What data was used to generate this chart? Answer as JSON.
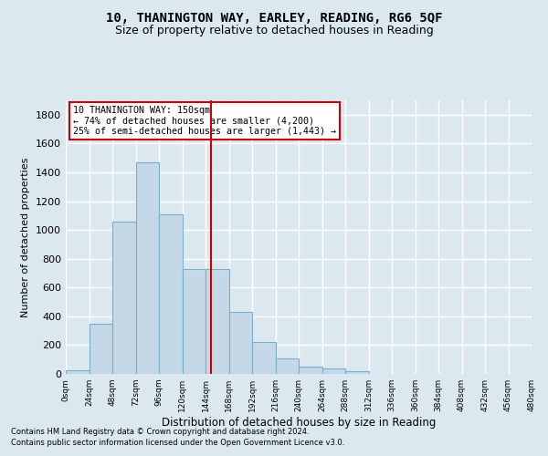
{
  "title": "10, THANINGTON WAY, EARLEY, READING, RG6 5QF",
  "subtitle": "Size of property relative to detached houses in Reading",
  "xlabel": "Distribution of detached houses by size in Reading",
  "ylabel": "Number of detached properties",
  "footnote1": "Contains HM Land Registry data © Crown copyright and database right 2024.",
  "footnote2": "Contains public sector information licensed under the Open Government Licence v3.0.",
  "annotation_line1": "10 THANINGTON WAY: 150sqm",
  "annotation_line2": "← 74% of detached houses are smaller (4,200)",
  "annotation_line3": "25% of semi-detached houses are larger (1,443) →",
  "property_size": 150,
  "bin_edges": [
    0,
    24,
    48,
    72,
    96,
    120,
    144,
    168,
    192,
    216,
    240,
    264,
    288,
    312,
    336,
    360,
    384,
    408,
    432,
    456,
    480
  ],
  "bar_values": [
    25,
    350,
    1060,
    1470,
    1110,
    730,
    730,
    430,
    220,
    105,
    50,
    38,
    20,
    0,
    0,
    0,
    0,
    0,
    0,
    0
  ],
  "bar_color": "#c5d8e8",
  "bar_edge_color": "#7aafc9",
  "vline_color": "#cc0000",
  "vline_x": 150,
  "annotation_box_color": "#ffffff",
  "annotation_box_edge_color": "#cc0000",
  "ylim": [
    0,
    1900
  ],
  "yticks": [
    0,
    200,
    400,
    600,
    800,
    1000,
    1200,
    1400,
    1600,
    1800
  ],
  "background_color": "#dce8f0",
  "grid_color": "#ffffff",
  "title_fontsize": 10,
  "subtitle_fontsize": 9
}
